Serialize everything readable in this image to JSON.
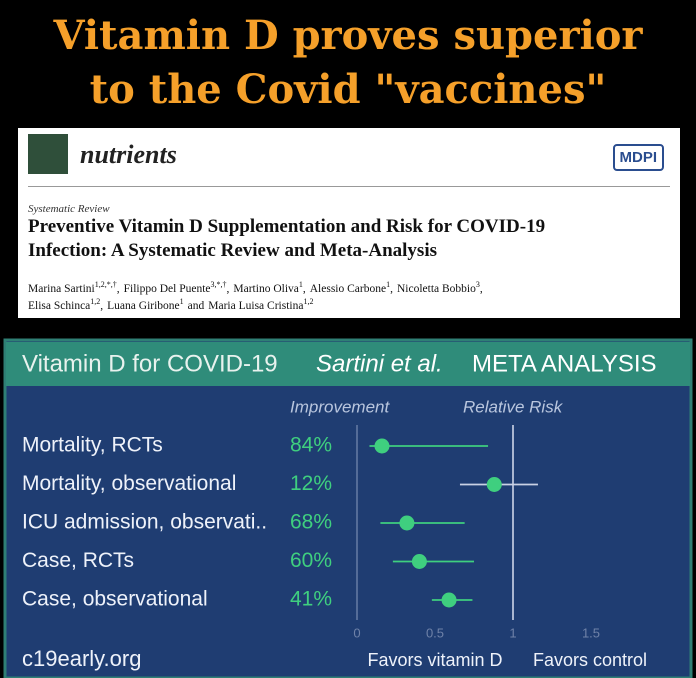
{
  "banner": {
    "lines": [
      "Vitamin D proves superior",
      "to the Covid \"vaccines\""
    ]
  },
  "paper": {
    "journal": "nutrients",
    "publisher": "MDPI",
    "article_type": "Systematic Review",
    "title_lines": [
      "Preventive Vitamin D Supplementation and Risk for COVID-19",
      "Infection: A Systematic Review and Meta-Analysis"
    ],
    "author_lines": [
      [
        {
          "name": "Marina Sartini",
          "sup": "1,2,*,†",
          "sep": ","
        },
        {
          "name": "Filippo Del Puente",
          "sup": "3,*,†",
          "sep": ","
        },
        {
          "name": "Martino Oliva",
          "sup": "1",
          "sep": ","
        },
        {
          "name": "Alessio Carbone",
          "sup": "1",
          "sep": ","
        },
        {
          "name": "Nicoletta Bobbio",
          "sup": "3",
          "sep": ","
        }
      ],
      [
        {
          "name": "Elisa Schinca",
          "sup": "1,2",
          "sep": ","
        },
        {
          "name": "Luana Giribone",
          "sup": "1",
          "sep": "and"
        },
        {
          "name": "Maria Luisa Cristina",
          "sup": "1,2"
        }
      ]
    ]
  },
  "chart_data": {
    "type": "forest",
    "title": "Vitamin D for COVID-19",
    "authors": "Sartini et al.",
    "subtitle": "META ANALYSIS",
    "column_headers": [
      "Improvement",
      "Relative Risk"
    ],
    "categories": [
      "Mortality, RCTs",
      "Mortality, observational",
      "ICU admission, observati..",
      "Case, RCTs",
      "Case, observational"
    ],
    "improvement_labels": [
      "84%",
      "12%",
      "68%",
      "60%",
      "41%"
    ],
    "estimate": [
      0.16,
      0.88,
      0.32,
      0.4,
      0.59
    ],
    "lower": [
      0.08,
      0.66,
      0.15,
      0.23,
      0.48
    ],
    "upper": [
      0.84,
      1.16,
      0.69,
      0.75,
      0.74
    ],
    "color": "#3fcf7f",
    "xlim": [
      0,
      1.5
    ],
    "xticks": [
      0,
      0.5,
      1,
      1.5
    ],
    "reference_line": 1,
    "x_labels": [
      "Favors vitamin D",
      "Favors control"
    ],
    "source": "c19early.org"
  }
}
